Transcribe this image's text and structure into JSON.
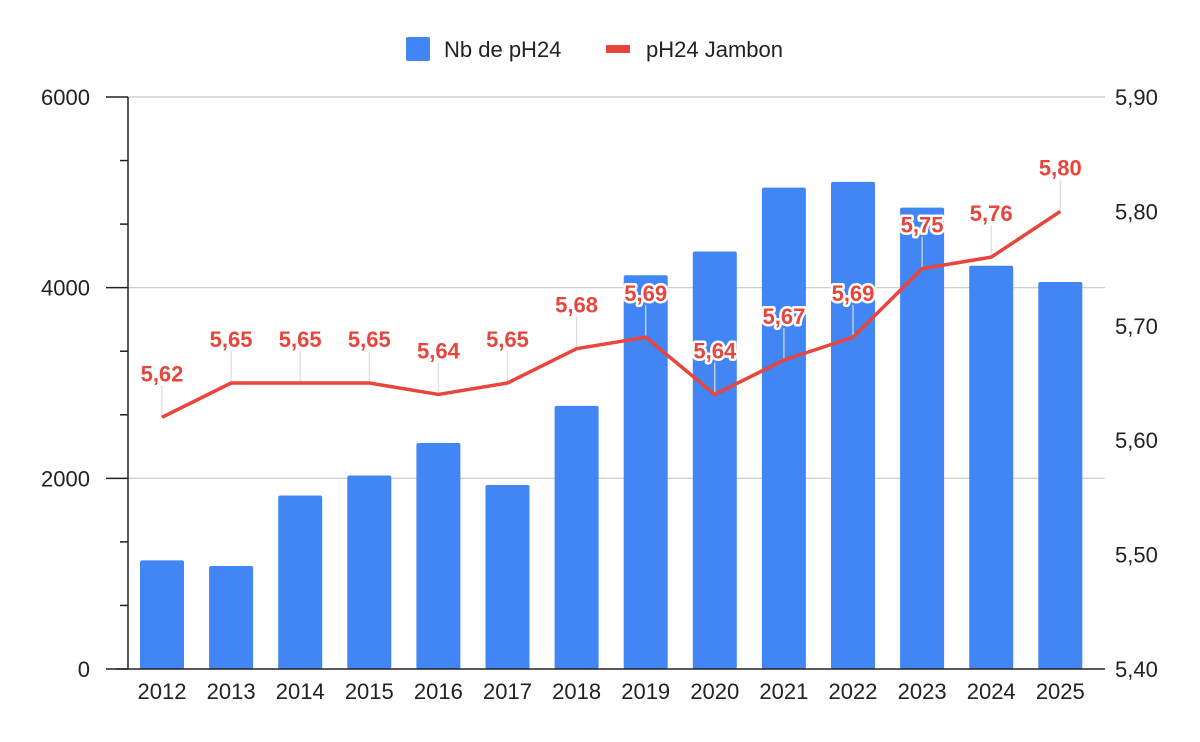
{
  "chart_data": {
    "type": "bar+line",
    "categories": [
      "2012",
      "2013",
      "2014",
      "2015",
      "2016",
      "2017",
      "2018",
      "2019",
      "2020",
      "2021",
      "2022",
      "2023",
      "2024",
      "2025"
    ],
    "series": [
      {
        "name": "Nb de pH24",
        "type": "bar",
        "axis": "left",
        "color": "#4285f4",
        "values": [
          1140,
          1080,
          1820,
          2030,
          2370,
          1930,
          2760,
          4130,
          4380,
          5050,
          5110,
          4840,
          4230,
          4060
        ]
      },
      {
        "name": "pH24 Jambon",
        "type": "line",
        "axis": "right",
        "color": "#e8453c",
        "values": [
          5.62,
          5.65,
          5.65,
          5.65,
          5.64,
          5.65,
          5.68,
          5.69,
          5.64,
          5.67,
          5.69,
          5.75,
          5.76,
          5.8
        ],
        "labels": [
          "5,62",
          "5,65",
          "5,65",
          "5,65",
          "5,64",
          "5,65",
          "5,68",
          "5,69",
          "5,64",
          "5,67",
          "5,69",
          "5,75",
          "5,76",
          "5,80"
        ]
      }
    ],
    "y_left": {
      "min": 0,
      "max": 6000,
      "ticks": [
        0,
        2000,
        4000,
        6000
      ],
      "tick_labels": [
        "0",
        "2000",
        "4000",
        "6000"
      ]
    },
    "y_right": {
      "min": 5.4,
      "max": 5.9,
      "ticks": [
        5.4,
        5.5,
        5.6,
        5.7,
        5.8,
        5.9
      ],
      "tick_labels": [
        "5,40",
        "5,50",
        "5,60",
        "5,70",
        "5,80",
        "5,90"
      ]
    },
    "grid": true,
    "legend": "top-center",
    "title": "",
    "xlabel": "",
    "ylabel": ""
  }
}
